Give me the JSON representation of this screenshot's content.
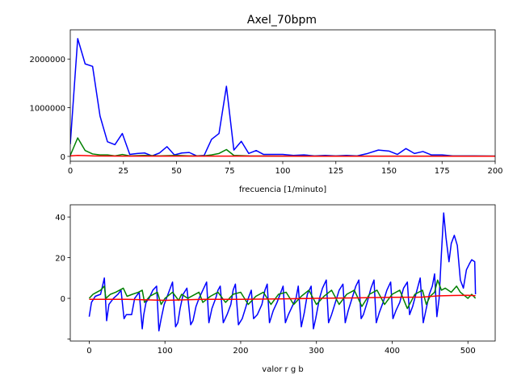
{
  "figure": {
    "title": "Axel_70bpm"
  },
  "chart_data": [
    {
      "type": "line",
      "title": "Axel_70bpm",
      "xlabel": "frecuencia [1/minuto]",
      "ylabel": "",
      "xlim": [
        0,
        200
      ],
      "ylim": [
        -100000,
        2600000
      ],
      "xticks": [
        0,
        25,
        50,
        75,
        100,
        125,
        150,
        175,
        200
      ],
      "yticks": [
        0,
        1000000,
        2000000
      ],
      "xtick_labels": [
        "0",
        "25",
        "50",
        "75",
        "100",
        "125",
        "150",
        "175",
        "200"
      ],
      "ytick_labels": [
        "0",
        "1000000",
        "2000000"
      ],
      "grid": false,
      "series": [
        {
          "color": "#0000ff",
          "x": [
            0,
            2,
            3.5,
            7,
            10.5,
            14,
            17.5,
            21,
            24.5,
            28,
            31.5,
            35,
            38.5,
            42,
            45.5,
            49,
            52.5,
            56,
            59.5,
            63,
            66.5,
            70,
            73.5,
            77,
            80.5,
            84,
            87.5,
            91,
            95,
            100,
            105,
            110,
            115,
            120,
            125,
            130,
            135,
            140,
            145,
            150,
            154,
            158,
            162,
            166,
            170,
            175,
            180,
            190,
            200
          ],
          "y": [
            250000,
            1500000,
            2420000,
            1900000,
            1850000,
            830000,
            300000,
            240000,
            470000,
            40000,
            60000,
            70000,
            10000,
            70000,
            200000,
            30000,
            70000,
            80000,
            10000,
            20000,
            350000,
            470000,
            1440000,
            130000,
            310000,
            60000,
            120000,
            40000,
            40000,
            40000,
            20000,
            30000,
            10000,
            20000,
            10000,
            20000,
            10000,
            60000,
            130000,
            110000,
            40000,
            160000,
            60000,
            100000,
            30000,
            30000,
            10000,
            10000,
            5000
          ]
        },
        {
          "color": "#008000",
          "x": [
            0,
            3.5,
            7,
            10.5,
            14,
            17.5,
            21,
            24.5,
            28,
            35,
            42,
            50,
            56,
            63,
            66.5,
            70,
            73.5,
            77,
            84,
            100,
            125,
            150,
            175,
            200
          ],
          "y": [
            20000,
            380000,
            120000,
            50000,
            30000,
            30000,
            10000,
            40000,
            10000,
            20000,
            10000,
            20000,
            10000,
            10000,
            30000,
            60000,
            140000,
            20000,
            10000,
            5000,
            5000,
            5000,
            5000,
            5000
          ]
        },
        {
          "color": "#ff0000",
          "x": [
            0,
            3.5,
            7,
            10.5,
            14,
            25,
            50,
            75,
            100,
            125,
            150,
            175,
            200
          ],
          "y": [
            10000,
            20000,
            15000,
            10000,
            8000,
            5000,
            5000,
            5000,
            5000,
            3000,
            3000,
            3000,
            3000
          ]
        }
      ]
    },
    {
      "type": "line",
      "title": "",
      "xlabel": "valor r g b",
      "ylabel": "",
      "xlim": [
        -25,
        536
      ],
      "ylim": [
        -21,
        46
      ],
      "xticks": [
        0,
        100,
        200,
        300,
        400,
        500
      ],
      "yticks": [
        -20,
        0,
        20,
        40
      ],
      "xtick_labels": [
        "0",
        "100",
        "200",
        "300",
        "400",
        "500"
      ],
      "ytick_labels": [
        "",
        "0",
        "20",
        "40"
      ],
      "grid": false,
      "series": [
        {
          "color": "#0000ff",
          "x": [
            0,
            3,
            8,
            15,
            20,
            23,
            26,
            32,
            38,
            42,
            46,
            49,
            52,
            56,
            60,
            66,
            70,
            72,
            75,
            79,
            84,
            89,
            92,
            95,
            99,
            104,
            110,
            114,
            117,
            120,
            124,
            129,
            134,
            137,
            141,
            145,
            150,
            155,
            158,
            162,
            167,
            170,
            173,
            177,
            182,
            187,
            190,
            193,
            197,
            202,
            207,
            210,
            214,
            217,
            222,
            228,
            232,
            235,
            238,
            243,
            248,
            253,
            256,
            259,
            263,
            268,
            273,
            276,
            280,
            284,
            288,
            293,
            296,
            299,
            304,
            308,
            313,
            316,
            320,
            325,
            330,
            335,
            338,
            342,
            347,
            352,
            356,
            359,
            362,
            367,
            372,
            376,
            379,
            383,
            388,
            393,
            398,
            401,
            405,
            410,
            415,
            420,
            423,
            427,
            432,
            437,
            441,
            445,
            449,
            453,
            456,
            459,
            462,
            465,
            468,
            471,
            475,
            478,
            482,
            486,
            490,
            494,
            498,
            502,
            505,
            509,
            510
          ],
          "y": [
            -9,
            -2,
            1,
            2,
            10,
            -11,
            -3,
            0,
            2,
            4,
            -10,
            -8,
            -8,
            -8,
            0,
            3,
            -15,
            -8,
            -2,
            0,
            4,
            6,
            -16,
            -10,
            -3,
            2,
            8,
            -14,
            -12,
            -5,
            2,
            5,
            -13,
            -11,
            -4,
            0,
            4,
            8,
            -12,
            -5,
            0,
            4,
            6,
            -12,
            -8,
            -3,
            4,
            7,
            -13,
            -10,
            -4,
            0,
            4,
            -10,
            -8,
            -3,
            4,
            7,
            -12,
            -6,
            -2,
            3,
            6,
            -12,
            -8,
            -4,
            0,
            6,
            -14,
            -7,
            2,
            6,
            -15,
            -10,
            0,
            5,
            9,
            -12,
            -8,
            -2,
            4,
            7,
            -12,
            -6,
            0,
            6,
            9,
            -10,
            -8,
            -2,
            5,
            9,
            -12,
            -7,
            -2,
            4,
            8,
            -10,
            -6,
            -2,
            5,
            8,
            -8,
            -4,
            3,
            10,
            -12,
            -5,
            2,
            6,
            12,
            -9,
            0,
            22,
            42,
            30,
            18,
            27,
            31,
            26,
            9,
            5,
            14,
            17,
            19,
            18,
            2
          ]
        },
        {
          "color": "#008000",
          "x": [
            0,
            5,
            10,
            15,
            20,
            22,
            28,
            35,
            45,
            50,
            57,
            65,
            70,
            73,
            80,
            90,
            95,
            100,
            110,
            118,
            122,
            130,
            145,
            150,
            160,
            170,
            180,
            190,
            200,
            210,
            220,
            230,
            240,
            250,
            260,
            270,
            280,
            290,
            300,
            310,
            320,
            330,
            340,
            350,
            360,
            370,
            380,
            390,
            400,
            410,
            420,
            430,
            440,
            445,
            450,
            456,
            460,
            465,
            470,
            478,
            485,
            490,
            500,
            505,
            510
          ],
          "y": [
            0,
            2,
            3,
            4,
            6,
            0,
            2,
            3,
            5,
            1,
            2,
            3,
            4,
            -2,
            1,
            3,
            -3,
            0,
            3,
            -1,
            2,
            0,
            3,
            -2,
            1,
            3,
            -2,
            2,
            3,
            -3,
            1,
            3,
            -3,
            2,
            3,
            -3,
            1,
            4,
            -3,
            1,
            4,
            -3,
            2,
            4,
            -4,
            2,
            4,
            -3,
            2,
            4,
            -5,
            2,
            4,
            -3,
            1,
            3,
            9,
            4,
            5,
            3,
            6,
            3,
            0,
            2,
            0
          ]
        },
        {
          "color": "#ff0000",
          "x": [
            0,
            50,
            100,
            150,
            200,
            250,
            300,
            350,
            400,
            440,
            460,
            480,
            500,
            510
          ],
          "y": [
            -0.5,
            -0.5,
            -1,
            -0.5,
            -0.5,
            -0.3,
            0,
            0.2,
            0.5,
            0.6,
            1.2,
            1.4,
            1.5,
            1.3
          ]
        }
      ]
    }
  ]
}
